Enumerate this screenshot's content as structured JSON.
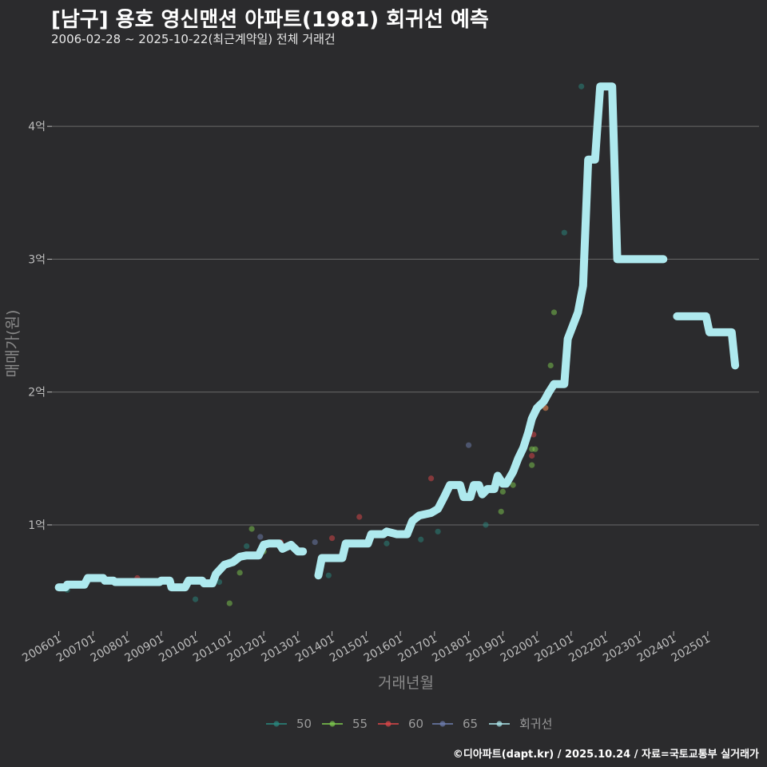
{
  "header": {
    "title": "[남구] 용호 영신맨션 아파트(1981) 회귀선 예측",
    "subtitle": "2006-02-28 ~ 2025-10-22(최근계약일) 전체 거래건"
  },
  "footer": {
    "caption": "©디아파트(dapt.kr) / 2025.10.24 / 자료=국토교통부 실거래가"
  },
  "colors": {
    "background": "#2b2b2d",
    "grid": "#6a6a6a",
    "s50": "#2a8a80",
    "s55": "#7fcc4f",
    "s60": "#e0484a",
    "s65": "#6f7fb0",
    "regression": "#aee9ee"
  },
  "chart_data": {
    "type": "line",
    "xlabel": "거래년월",
    "ylabel": "매매가(원)",
    "xlim": [
      2005.8,
      2026.5
    ],
    "ylim": [
      0.2,
      4.5
    ],
    "y_unit": "억",
    "yticks": [
      {
        "value": 1,
        "label": "1억"
      },
      {
        "value": 2,
        "label": "2억"
      },
      {
        "value": 3,
        "label": "3억"
      },
      {
        "value": 4,
        "label": "4억"
      }
    ],
    "xticks": [
      {
        "value": 2006,
        "label": "200601"
      },
      {
        "value": 2007,
        "label": "200701"
      },
      {
        "value": 2008,
        "label": "200801"
      },
      {
        "value": 2009,
        "label": "200901"
      },
      {
        "value": 2010,
        "label": "201001"
      },
      {
        "value": 2011,
        "label": "201101"
      },
      {
        "value": 2012,
        "label": "201201"
      },
      {
        "value": 2013,
        "label": "201301"
      },
      {
        "value": 2014,
        "label": "201401"
      },
      {
        "value": 2015,
        "label": "201501"
      },
      {
        "value": 2016,
        "label": "201601"
      },
      {
        "value": 2017,
        "label": "201701"
      },
      {
        "value": 2018,
        "label": "201801"
      },
      {
        "value": 2019,
        "label": "201901"
      },
      {
        "value": 2020,
        "label": "202001"
      },
      {
        "value": 2021,
        "label": "202101"
      },
      {
        "value": 2022,
        "label": "202201"
      },
      {
        "value": 2023,
        "label": "202301"
      },
      {
        "value": 2024,
        "label": "202401"
      },
      {
        "value": 2025,
        "label": "202501"
      }
    ],
    "legend": [
      {
        "key": "s50",
        "label": "50"
      },
      {
        "key": "s55",
        "label": "55"
      },
      {
        "key": "s60",
        "label": "60"
      },
      {
        "key": "s65",
        "label": "65"
      },
      {
        "key": "regression",
        "label": "회귀선"
      }
    ],
    "scatter": [
      {
        "series": "s50",
        "x": 2006.25,
        "y": 0.51
      },
      {
        "series": "s50",
        "x": 2008.5,
        "y": 0.56
      },
      {
        "series": "s50",
        "x": 2009.3,
        "y": 0.53
      },
      {
        "series": "s50",
        "x": 2010.0,
        "y": 0.44
      },
      {
        "series": "s50",
        "x": 2010.7,
        "y": 0.57
      },
      {
        "series": "s50",
        "x": 2011.5,
        "y": 0.84
      },
      {
        "series": "s50",
        "x": 2013.9,
        "y": 0.62
      },
      {
        "series": "s50",
        "x": 2015.6,
        "y": 0.86
      },
      {
        "series": "s50",
        "x": 2016.6,
        "y": 0.89
      },
      {
        "series": "s50",
        "x": 2017.1,
        "y": 0.95
      },
      {
        "series": "s50",
        "x": 2018.5,
        "y": 1.0
      },
      {
        "series": "s50",
        "x": 2020.8,
        "y": 3.2
      },
      {
        "series": "s50",
        "x": 2021.3,
        "y": 4.3
      },
      {
        "series": "s55",
        "x": 2011.0,
        "y": 0.41
      },
      {
        "series": "s55",
        "x": 2011.3,
        "y": 0.64
      },
      {
        "series": "s55",
        "x": 2011.65,
        "y": 0.97
      },
      {
        "series": "s55",
        "x": 2012.0,
        "y": 0.8
      },
      {
        "series": "s55",
        "x": 2018.95,
        "y": 1.1
      },
      {
        "series": "s55",
        "x": 2019.0,
        "y": 1.25
      },
      {
        "series": "s55",
        "x": 2019.3,
        "y": 1.3
      },
      {
        "series": "s55",
        "x": 2019.85,
        "y": 1.45
      },
      {
        "series": "s55",
        "x": 2019.85,
        "y": 1.57
      },
      {
        "series": "s55",
        "x": 2019.95,
        "y": 1.57
      },
      {
        "series": "s55",
        "x": 2020.25,
        "y": 1.88
      },
      {
        "series": "s55",
        "x": 2020.4,
        "y": 2.2
      },
      {
        "series": "s55",
        "x": 2020.5,
        "y": 2.6
      },
      {
        "series": "s60",
        "x": 2008.3,
        "y": 0.6
      },
      {
        "series": "s60",
        "x": 2012.5,
        "y": 0.87
      },
      {
        "series": "s60",
        "x": 2014.0,
        "y": 0.9
      },
      {
        "series": "s60",
        "x": 2014.8,
        "y": 1.06
      },
      {
        "series": "s60",
        "x": 2016.9,
        "y": 1.35
      },
      {
        "series": "s60",
        "x": 2019.85,
        "y": 1.52
      },
      {
        "series": "s60",
        "x": 2019.9,
        "y": 1.68
      },
      {
        "series": "s60",
        "x": 2020.25,
        "y": 1.88
      },
      {
        "series": "s65",
        "x": 2011.9,
        "y": 0.91
      },
      {
        "series": "s65",
        "x": 2013.5,
        "y": 0.87
      },
      {
        "series": "s65",
        "x": 2018.0,
        "y": 1.6
      }
    ],
    "regression_segments": [
      [
        [
          2006.0,
          0.53
        ],
        [
          2006.2,
          0.53
        ],
        [
          2006.25,
          0.55
        ],
        [
          2006.75,
          0.55
        ],
        [
          2006.85,
          0.6
        ],
        [
          2007.3,
          0.6
        ],
        [
          2007.35,
          0.58
        ],
        [
          2007.6,
          0.58
        ],
        [
          2007.65,
          0.57
        ],
        [
          2008.95,
          0.57
        ],
        [
          2009.0,
          0.58
        ],
        [
          2009.25,
          0.58
        ],
        [
          2009.3,
          0.53
        ],
        [
          2009.7,
          0.53
        ],
        [
          2009.8,
          0.58
        ],
        [
          2010.2,
          0.58
        ],
        [
          2010.25,
          0.56
        ],
        [
          2010.5,
          0.56
        ],
        [
          2010.6,
          0.63
        ],
        [
          2010.85,
          0.7
        ],
        [
          2011.1,
          0.72
        ],
        [
          2011.3,
          0.76
        ],
        [
          2011.5,
          0.77
        ],
        [
          2011.85,
          0.77
        ],
        [
          2012.0,
          0.85
        ],
        [
          2012.15,
          0.86
        ],
        [
          2012.45,
          0.86
        ],
        [
          2012.55,
          0.82
        ],
        [
          2012.8,
          0.85
        ],
        [
          2013.0,
          0.8
        ],
        [
          2013.15,
          0.8
        ]
      ],
      [
        [
          2013.6,
          0.62
        ],
        [
          2013.7,
          0.75
        ],
        [
          2014.3,
          0.75
        ],
        [
          2014.4,
          0.86
        ],
        [
          2015.05,
          0.86
        ],
        [
          2015.15,
          0.93
        ],
        [
          2015.5,
          0.93
        ],
        [
          2015.6,
          0.95
        ],
        [
          2015.9,
          0.93
        ],
        [
          2016.2,
          0.93
        ],
        [
          2016.35,
          1.03
        ],
        [
          2016.55,
          1.07
        ],
        [
          2016.9,
          1.09
        ],
        [
          2017.1,
          1.12
        ],
        [
          2017.3,
          1.22
        ],
        [
          2017.45,
          1.3
        ],
        [
          2017.75,
          1.3
        ],
        [
          2017.85,
          1.21
        ],
        [
          2018.05,
          1.21
        ],
        [
          2018.15,
          1.3
        ],
        [
          2018.3,
          1.3
        ],
        [
          2018.4,
          1.23
        ],
        [
          2018.55,
          1.27
        ],
        [
          2018.75,
          1.27
        ],
        [
          2018.85,
          1.37
        ],
        [
          2019.0,
          1.31
        ],
        [
          2019.1,
          1.31
        ],
        [
          2019.3,
          1.4
        ],
        [
          2019.45,
          1.5
        ],
        [
          2019.6,
          1.58
        ],
        [
          2019.75,
          1.7
        ],
        [
          2019.85,
          1.8
        ],
        [
          2020.0,
          1.88
        ],
        [
          2020.2,
          1.93
        ],
        [
          2020.35,
          2.0
        ],
        [
          2020.5,
          2.06
        ],
        [
          2020.8,
          2.06
        ],
        [
          2020.9,
          2.4
        ],
        [
          2021.05,
          2.5
        ],
        [
          2021.2,
          2.6
        ],
        [
          2021.35,
          2.8
        ],
        [
          2021.5,
          3.75
        ],
        [
          2021.7,
          3.75
        ],
        [
          2021.85,
          4.3
        ],
        [
          2022.2,
          4.3
        ],
        [
          2022.35,
          3.0
        ],
        [
          2023.7,
          3.0
        ]
      ],
      [
        [
          2024.1,
          2.57
        ],
        [
          2024.95,
          2.57
        ],
        [
          2025.05,
          2.45
        ],
        [
          2025.7,
          2.45
        ],
        [
          2025.8,
          2.2
        ]
      ]
    ]
  }
}
